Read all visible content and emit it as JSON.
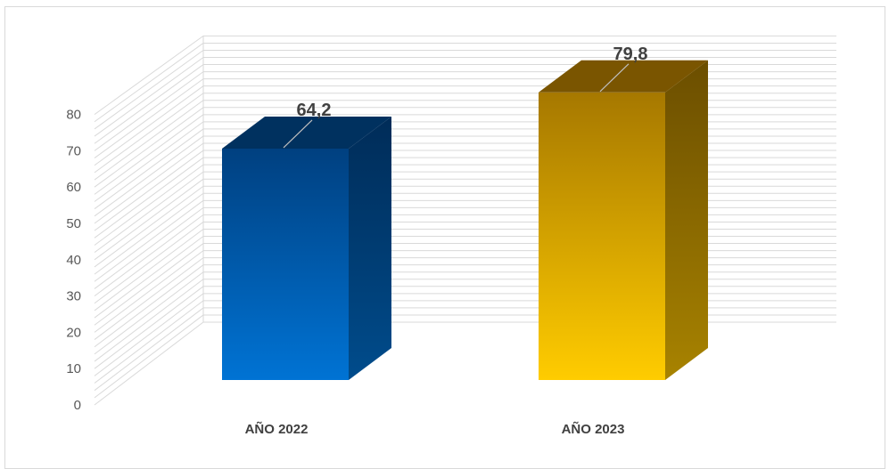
{
  "chart_data": {
    "type": "bar",
    "categories": [
      "AÑO 2022",
      "AÑO 2023"
    ],
    "values": [
      64.2,
      79.8
    ],
    "data_labels": [
      "64,2",
      "79,8"
    ],
    "ylim": [
      0,
      80
    ],
    "yticks": [
      "0",
      "10",
      "20",
      "30",
      "40",
      "50",
      "60",
      "70",
      "80"
    ],
    "grid": true,
    "title": "",
    "xlabel": "",
    "ylabel": "",
    "style": "3d-column",
    "colors": {
      "bar_1_light": "#0070D0",
      "bar_1_dark": "#003F7F",
      "bar_2_light": "#FFCC00",
      "bar_2_dark": "#A07000",
      "gridline": "#D9D9D9",
      "text": "#595959"
    }
  }
}
